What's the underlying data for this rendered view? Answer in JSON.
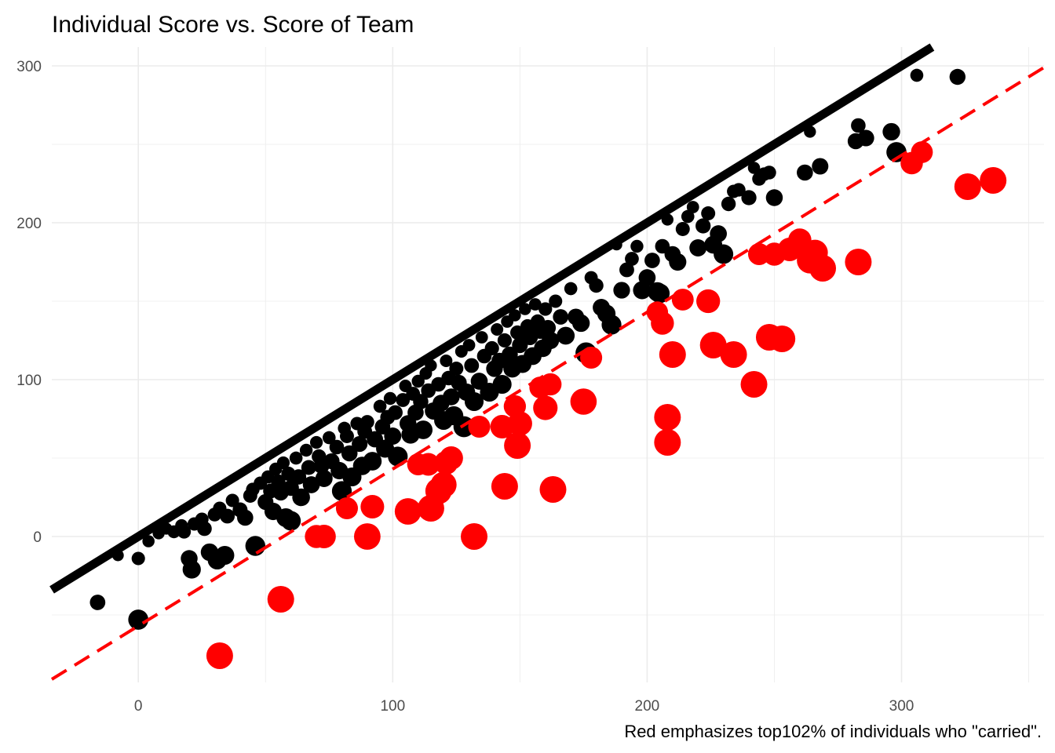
{
  "chart_data": {
    "type": "scatter",
    "title": "Individual Score vs. Score of Team",
    "subtitle": "",
    "xlabel": "",
    "ylabel": "",
    "caption": "Red emphasizes top102% of individuals who \"carried\".",
    "xlim": [
      -34,
      356
    ],
    "ylim": [
      -93,
      312
    ],
    "x_ticks": [
      0,
      100,
      200,
      300
    ],
    "y_ticks": [
      0,
      100,
      200,
      300
    ],
    "x_tick_labels": [
      "0",
      "100",
      "200",
      "300"
    ],
    "y_tick_labels": [
      "0",
      "100",
      "200",
      "300"
    ],
    "grid": true,
    "legend": "none",
    "colors": {
      "normal": "#000000",
      "highlight": "#ff0000",
      "grid": "#ebebeb",
      "ref_dash": "#ff0000"
    },
    "reference_lines": [
      {
        "kind": "solid",
        "color": "#000000",
        "intercept": 0,
        "slope": 1
      },
      {
        "kind": "dashed",
        "color": "#ff0000",
        "intercept": -57,
        "slope": 1
      }
    ],
    "series": [
      {
        "color": "#000000",
        "points": [
          [
            -16,
            -42
          ],
          [
            0,
            -53
          ],
          [
            -8,
            -12
          ],
          [
            0,
            -14
          ],
          [
            4,
            -3
          ],
          [
            8,
            2
          ],
          [
            11,
            5
          ],
          [
            14,
            3
          ],
          [
            17,
            7
          ],
          [
            18,
            3
          ],
          [
            20,
            -14
          ],
          [
            21,
            -21
          ],
          [
            22,
            8
          ],
          [
            25,
            11
          ],
          [
            26,
            5
          ],
          [
            28,
            -10
          ],
          [
            30,
            14
          ],
          [
            31,
            -15
          ],
          [
            32,
            18
          ],
          [
            34,
            -12
          ],
          [
            35,
            13
          ],
          [
            37,
            23
          ],
          [
            40,
            17
          ],
          [
            42,
            12
          ],
          [
            44,
            26
          ],
          [
            45,
            30
          ],
          [
            46,
            -6
          ],
          [
            48,
            34
          ],
          [
            50,
            22
          ],
          [
            51,
            38
          ],
          [
            52,
            29
          ],
          [
            53,
            16
          ],
          [
            54,
            43
          ],
          [
            55,
            35
          ],
          [
            56,
            28
          ],
          [
            57,
            47
          ],
          [
            58,
            12
          ],
          [
            59,
            40
          ],
          [
            60,
            10
          ],
          [
            60,
            31
          ],
          [
            62,
            50
          ],
          [
            63,
            38
          ],
          [
            64,
            25
          ],
          [
            66,
            55
          ],
          [
            67,
            44
          ],
          [
            68,
            33
          ],
          [
            70,
            60
          ],
          [
            71,
            51
          ],
          [
            72,
            45
          ],
          [
            73,
            37
          ],
          [
            75,
            63
          ],
          [
            76,
            48
          ],
          [
            78,
            57
          ],
          [
            79,
            42
          ],
          [
            80,
            29
          ],
          [
            81,
            69
          ],
          [
            82,
            64
          ],
          [
            83,
            53
          ],
          [
            84,
            38
          ],
          [
            86,
            72
          ],
          [
            87,
            59
          ],
          [
            88,
            45
          ],
          [
            89,
            67
          ],
          [
            90,
            73
          ],
          [
            92,
            48
          ],
          [
            93,
            62
          ],
          [
            95,
            83
          ],
          [
            96,
            70
          ],
          [
            97,
            56
          ],
          [
            98,
            76
          ],
          [
            99,
            88
          ],
          [
            100,
            64
          ],
          [
            101,
            79
          ],
          [
            102,
            51
          ],
          [
            104,
            87
          ],
          [
            105,
            96
          ],
          [
            106,
            72
          ],
          [
            107,
            65
          ],
          [
            108,
            91
          ],
          [
            109,
            79
          ],
          [
            110,
            99
          ],
          [
            111,
            86
          ],
          [
            112,
            68
          ],
          [
            113,
            104
          ],
          [
            114,
            93
          ],
          [
            115,
            109
          ],
          [
            116,
            80
          ],
          [
            118,
            97
          ],
          [
            119,
            85
          ],
          [
            120,
            74
          ],
          [
            121,
            112
          ],
          [
            122,
            101
          ],
          [
            123,
            89
          ],
          [
            124,
            77
          ],
          [
            125,
            107
          ],
          [
            126,
            98
          ],
          [
            127,
            118
          ],
          [
            128,
            70
          ],
          [
            129,
            92
          ],
          [
            130,
            122
          ],
          [
            131,
            109
          ],
          [
            132,
            86
          ],
          [
            134,
            99
          ],
          [
            135,
            127
          ],
          [
            136,
            115
          ],
          [
            138,
            92
          ],
          [
            139,
            120
          ],
          [
            140,
            107
          ],
          [
            141,
            132
          ],
          [
            142,
            112
          ],
          [
            143,
            97
          ],
          [
            144,
            125
          ],
          [
            145,
            137
          ],
          [
            146,
            116
          ],
          [
            147,
            107
          ],
          [
            148,
            141
          ],
          [
            149,
            130
          ],
          [
            150,
            122
          ],
          [
            151,
            110
          ],
          [
            152,
            145
          ],
          [
            153,
            134
          ],
          [
            154,
            127
          ],
          [
            155,
            115
          ],
          [
            156,
            148
          ],
          [
            157,
            137
          ],
          [
            158,
            131
          ],
          [
            159,
            120
          ],
          [
            160,
            145
          ],
          [
            161,
            133
          ],
          [
            162,
            125
          ],
          [
            164,
            150
          ],
          [
            166,
            140
          ],
          [
            168,
            128
          ],
          [
            170,
            158
          ],
          [
            172,
            140
          ],
          [
            174,
            136
          ],
          [
            176,
            117
          ],
          [
            178,
            165
          ],
          [
            180,
            160
          ],
          [
            182,
            146
          ],
          [
            184,
            142
          ],
          [
            186,
            135
          ],
          [
            188,
            186
          ],
          [
            190,
            157
          ],
          [
            192,
            170
          ],
          [
            194,
            177
          ],
          [
            196,
            185
          ],
          [
            198,
            157
          ],
          [
            200,
            165
          ],
          [
            202,
            176
          ],
          [
            204,
            156
          ],
          [
            205,
            155
          ],
          [
            206,
            185
          ],
          [
            208,
            202
          ],
          [
            210,
            180
          ],
          [
            212,
            175
          ],
          [
            214,
            196
          ],
          [
            216,
            204
          ],
          [
            218,
            210
          ],
          [
            220,
            184
          ],
          [
            222,
            198
          ],
          [
            224,
            206
          ],
          [
            226,
            186
          ],
          [
            228,
            193
          ],
          [
            230,
            180
          ],
          [
            232,
            212
          ],
          [
            234,
            220
          ],
          [
            236,
            221
          ],
          [
            240,
            216
          ],
          [
            242,
            235
          ],
          [
            244,
            228
          ],
          [
            246,
            231
          ],
          [
            248,
            232
          ],
          [
            250,
            216
          ],
          [
            262,
            232
          ],
          [
            264,
            258
          ],
          [
            268,
            236
          ],
          [
            282,
            252
          ],
          [
            283,
            262
          ],
          [
            286,
            254
          ],
          [
            296,
            258
          ],
          [
            298,
            245
          ],
          [
            306,
            294
          ],
          [
            322,
            293
          ]
        ]
      },
      {
        "color": "#ff0000",
        "points": [
          [
            32,
            -76
          ],
          [
            56,
            -40
          ],
          [
            70,
            0
          ],
          [
            73,
            0
          ],
          [
            82,
            18
          ],
          [
            90,
            0
          ],
          [
            92,
            19
          ],
          [
            106,
            16
          ],
          [
            110,
            46
          ],
          [
            114,
            46
          ],
          [
            115,
            18
          ],
          [
            118,
            29
          ],
          [
            120,
            33
          ],
          [
            121,
            47
          ],
          [
            123,
            50
          ],
          [
            132,
            0
          ],
          [
            134,
            70
          ],
          [
            143,
            70
          ],
          [
            144,
            32
          ],
          [
            148,
            83
          ],
          [
            149,
            58
          ],
          [
            150,
            72
          ],
          [
            158,
            95
          ],
          [
            160,
            82
          ],
          [
            162,
            97
          ],
          [
            163,
            30
          ],
          [
            175,
            86
          ],
          [
            178,
            114
          ],
          [
            204,
            143
          ],
          [
            206,
            136
          ],
          [
            208,
            60
          ],
          [
            208,
            76
          ],
          [
            210,
            116
          ],
          [
            214,
            151
          ],
          [
            224,
            150
          ],
          [
            226,
            122
          ],
          [
            234,
            116
          ],
          [
            242,
            97
          ],
          [
            244,
            180
          ],
          [
            248,
            127
          ],
          [
            250,
            180
          ],
          [
            253,
            126
          ],
          [
            256,
            183
          ],
          [
            260,
            189
          ],
          [
            264,
            176
          ],
          [
            266,
            181
          ],
          [
            269,
            171
          ],
          [
            283,
            175
          ],
          [
            304,
            238
          ],
          [
            308,
            245
          ],
          [
            326,
            223
          ],
          [
            336,
            227
          ]
        ]
      }
    ]
  }
}
